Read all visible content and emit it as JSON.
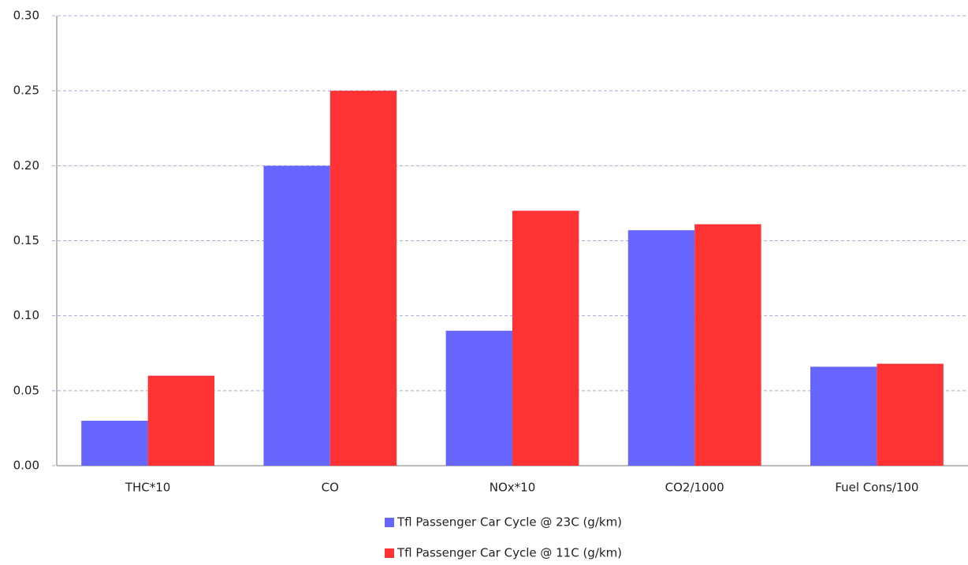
{
  "chart_data": {
    "type": "bar",
    "categories": [
      "THC*10",
      "CO",
      "NOx*10",
      "CO2/1000",
      "Fuel Cons/100"
    ],
    "series": [
      {
        "name": "Tfl Passenger Car Cycle @ 23C (g/km)",
        "color": "#6666ff",
        "values": [
          0.03,
          0.2,
          0.09,
          0.157,
          0.066
        ]
      },
      {
        "name": "Tfl Passenger Car Cycle @ 11C (g/km)",
        "color": "#ff3333",
        "values": [
          0.06,
          0.25,
          0.17,
          0.161,
          0.068
        ]
      }
    ],
    "ylim": [
      0,
      0.3
    ],
    "yticks": [
      {
        "value": 0,
        "label": "0.00"
      },
      0.05,
      {
        "value": 0.1,
        "label": "0.10"
      },
      0.15,
      {
        "value": 0.2,
        "label": "0.20"
      },
      0.25,
      {
        "value": 0.3,
        "label": "0.30"
      }
    ],
    "grid": true,
    "legend": "bottom"
  }
}
